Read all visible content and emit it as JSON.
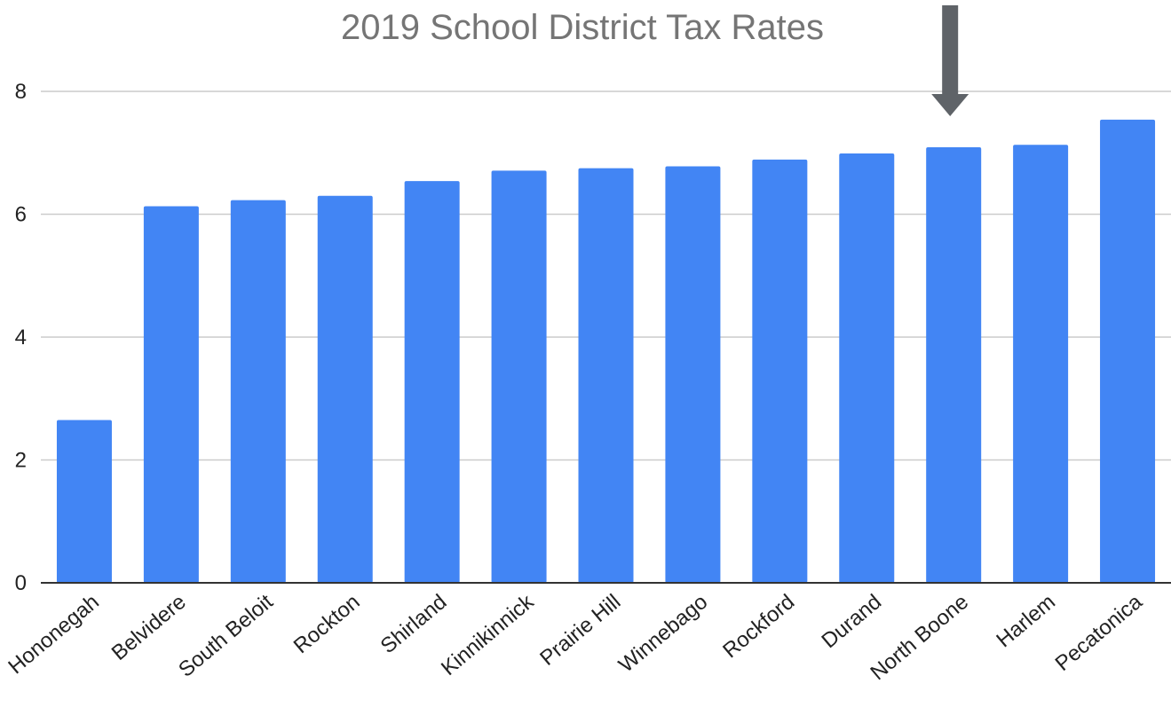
{
  "colors": {
    "bar": "#4285f4",
    "gridline": "#cccccc",
    "axis": "#333333",
    "title": "#757575",
    "arrow": "#5f6368"
  },
  "icons": {
    "highlight_marker": "down-arrow-icon"
  },
  "chart_data": {
    "type": "bar",
    "title": "2019 School District Tax Rates",
    "xlabel": "",
    "ylabel": "",
    "categories": [
      "Hononegah",
      "Belvidere",
      "South Beloit",
      "Rockton",
      "Shirland",
      "Kinnikinnick",
      "Prairie Hill",
      "Winnebago",
      "Rockford",
      "Durand",
      "North Boone",
      "Harlem",
      "Pecatonica"
    ],
    "values": [
      2.65,
      6.13,
      6.23,
      6.3,
      6.54,
      6.71,
      6.75,
      6.78,
      6.89,
      6.99,
      7.09,
      7.13,
      7.54
    ],
    "ylim": [
      0,
      8
    ],
    "yticks": [
      0,
      2,
      4,
      6,
      8
    ],
    "grid": true,
    "legend": "none",
    "highlighted_category": "North Boone"
  }
}
